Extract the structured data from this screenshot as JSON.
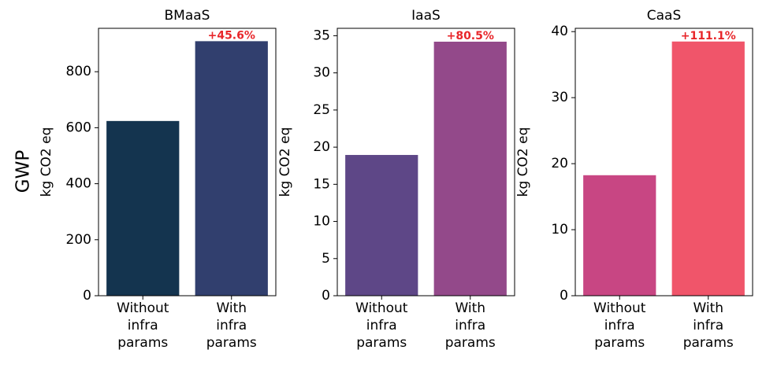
{
  "figure_label": "GWP",
  "chart_data": [
    {
      "type": "bar",
      "title": "BMaaS",
      "ylabel": "kg CO2 eq",
      "categories": [
        "Without infra params",
        "With infra params"
      ],
      "values": [
        624,
        909
      ],
      "colors": [
        "#14344f",
        "#313f6e"
      ],
      "annotation": "+45.6%",
      "ylim": [
        0,
        955
      ],
      "yticks": [
        0,
        200,
        400,
        600,
        800
      ]
    },
    {
      "type": "bar",
      "title": "IaaS",
      "ylabel": "kg CO2 eq",
      "categories": [
        "Without infra params",
        "With infra params"
      ],
      "values": [
        18.95,
        34.2
      ],
      "colors": [
        "#5e4787",
        "#93498a"
      ],
      "annotation": "+80.5%",
      "ylim": [
        0,
        36
      ],
      "yticks": [
        0,
        5,
        10,
        15,
        20,
        25,
        30,
        35
      ]
    },
    {
      "type": "bar",
      "title": "CaaS",
      "ylabel": "kg CO2 eq",
      "categories": [
        "Without infra params",
        "With infra params"
      ],
      "values": [
        18.25,
        38.5
      ],
      "colors": [
        "#c84683",
        "#f0556a"
      ],
      "annotation": "+111.1%",
      "ylim": [
        0,
        40.5
      ],
      "yticks": [
        0,
        10,
        20,
        30,
        40
      ]
    }
  ]
}
